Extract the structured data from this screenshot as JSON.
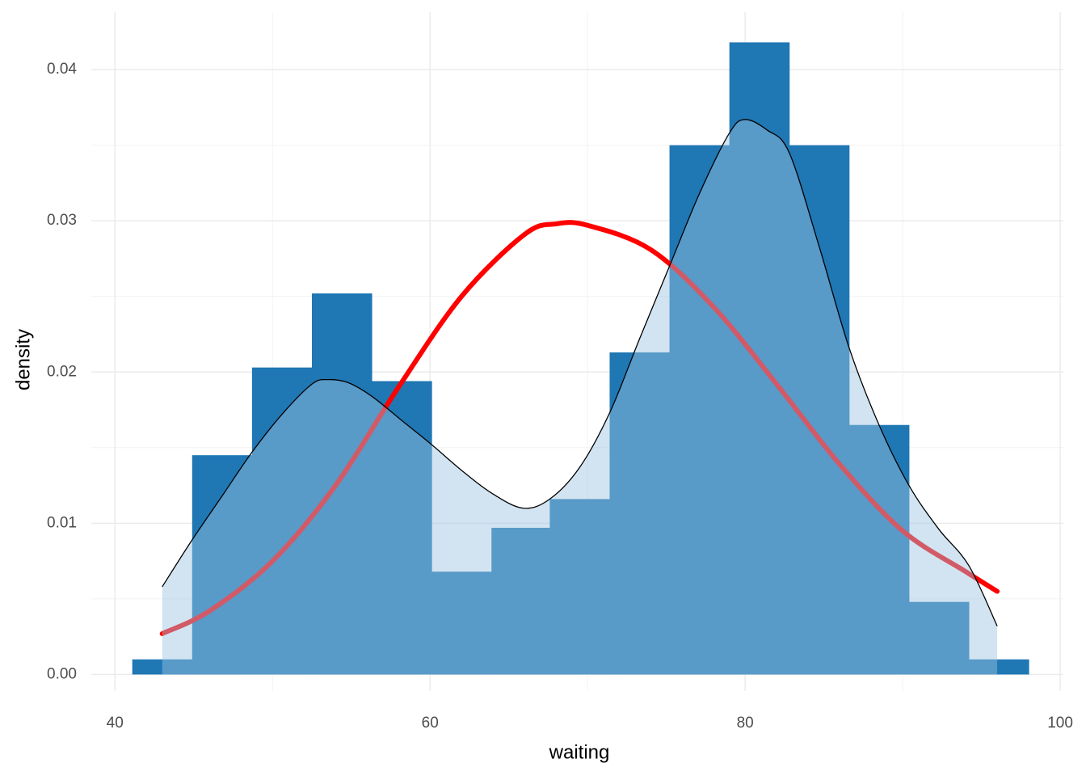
{
  "chart_data": {
    "type": "histogram",
    "x_label": "waiting",
    "y_label": "density",
    "xlim": [
      38.5,
      100.2
    ],
    "ylim": [
      -0.0011,
      0.0438
    ],
    "xticks": [
      40,
      60,
      80,
      100
    ],
    "yticks": [
      {
        "value": 0,
        "label": "0.00"
      },
      {
        "value": 0.01,
        "label": "0.01"
      },
      {
        "value": 0.02,
        "label": "0.02"
      },
      {
        "value": 0.03,
        "label": "0.03"
      },
      {
        "value": 0.04,
        "label": "0.04"
      }
    ],
    "x_minor_grid": [
      50,
      70,
      90
    ],
    "y_minor_grid": [
      0.005,
      0.015,
      0.025,
      0.035
    ],
    "grid": true,
    "histogram": {
      "color": "#1f77b4",
      "bins": [
        41.1,
        44.9,
        48.7,
        52.5,
        56.3,
        60.1,
        63.9,
        67.6,
        71.4,
        75.2,
        79.0,
        82.8,
        86.6,
        90.4,
        94.2,
        98.0
      ],
      "counts": [
        0.001,
        0.0145,
        0.0203,
        0.0252,
        0.0194,
        0.0068,
        0.0097,
        0.0116,
        0.0213,
        0.035,
        0.0418,
        0.035,
        0.0165,
        0.0048,
        0.001
      ]
    },
    "kde": {
      "color": "#000000",
      "fill": "#9ec4e0",
      "x": [
        43,
        44.9,
        46.8,
        48.7,
        50.6,
        52.5,
        53.5,
        54.8,
        56.3,
        58.2,
        60.1,
        62,
        63.9,
        65.9,
        67.6,
        69.5,
        71.4,
        73.3,
        75.2,
        77.1,
        79,
        80,
        81.4,
        82.8,
        84.7,
        86.6,
        88.5,
        90.4,
        92.3,
        94.2,
        96
      ],
      "y": [
        0.0058,
        0.0089,
        0.0118,
        0.0147,
        0.0172,
        0.0192,
        0.0195,
        0.0193,
        0.0184,
        0.0168,
        0.0152,
        0.0135,
        0.012,
        0.011,
        0.0116,
        0.0137,
        0.0173,
        0.0222,
        0.027,
        0.0318,
        0.0358,
        0.0367,
        0.036,
        0.0345,
        0.0283,
        0.0216,
        0.0165,
        0.0125,
        0.0096,
        0.0072,
        0.0032
      ]
    },
    "normal": {
      "color": "#ff0000",
      "x": [
        43,
        46,
        50,
        54,
        58,
        62,
        66,
        68,
        70,
        74,
        78,
        82,
        86,
        90,
        94,
        96
      ],
      "y": [
        0.0027,
        0.0042,
        0.0075,
        0.0125,
        0.019,
        0.025,
        0.0291,
        0.0298,
        0.0297,
        0.0281,
        0.0243,
        0.0192,
        0.0139,
        0.0095,
        0.0068,
        0.0055
      ]
    }
  }
}
